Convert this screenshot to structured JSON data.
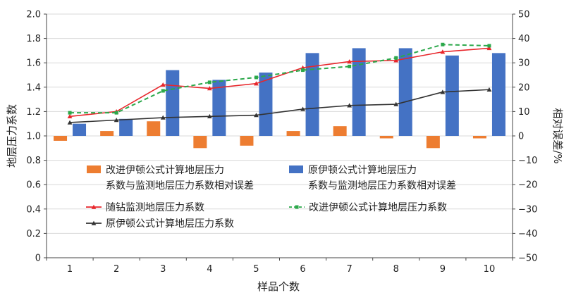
{
  "chart_data": {
    "type": "bar+line",
    "x_title": "样品个数",
    "y_left_title": "地层压力系数",
    "y_right_title": "相对误差/%",
    "categories": [
      "1",
      "2",
      "3",
      "4",
      "5",
      "6",
      "7",
      "8",
      "9",
      "10"
    ],
    "y_left": {
      "min": 0,
      "max": 2.0,
      "step": 0.2,
      "ticks": [
        "0",
        "0.2",
        "0.4",
        "0.6",
        "0.8",
        "1.0",
        "1.2",
        "1.4",
        "1.6",
        "1.8",
        "2.0"
      ]
    },
    "y_right": {
      "min": -50,
      "max": 50,
      "step": 10,
      "ticks": [
        "−50",
        "−40",
        "−30",
        "−20",
        "−10",
        "0",
        "10",
        "20",
        "30",
        "40",
        "50"
      ]
    },
    "bar_series": [
      {
        "name": "改进伊顿公式计算地层压力系数与监测地层压力系数相对误差",
        "legend_lines": [
          "改进伊顿公式计算地层压力",
          "系数与监测地层压力系数相对误差"
        ],
        "color": "#ED7D31",
        "values": [
          -2,
          2,
          6,
          -5,
          -4,
          2,
          4,
          -1,
          -5,
          -1
        ]
      },
      {
        "name": "原伊顿公式计算地层压力系数与监测地层压力系数相对误差",
        "legend_lines": [
          "原伊顿公式计算地层压力",
          "系数与监测地层压力系数相对误差"
        ],
        "color": "#4472C4",
        "values": [
          5,
          7,
          27,
          23,
          26,
          34,
          36,
          36,
          33,
          34
        ]
      }
    ],
    "line_series": [
      {
        "name": "随钻监测地层压力系数",
        "color": "#E8262B",
        "dash": "",
        "marker": "triangle",
        "values": [
          1.16,
          1.2,
          1.42,
          1.39,
          1.43,
          1.56,
          1.61,
          1.62,
          1.69,
          1.72
        ]
      },
      {
        "name": "改进伊顿公式计算地层压力系数",
        "color": "#2BA84A",
        "dash": "6,4",
        "marker": "square",
        "values": [
          1.19,
          1.19,
          1.37,
          1.44,
          1.48,
          1.54,
          1.57,
          1.64,
          1.75,
          1.74
        ]
      },
      {
        "name": "原伊顿公式计算地层压力系数",
        "color": "#333333",
        "dash": "",
        "marker": "triangle",
        "values": [
          1.11,
          1.13,
          1.15,
          1.16,
          1.17,
          1.22,
          1.25,
          1.26,
          1.36,
          1.38
        ]
      }
    ]
  }
}
